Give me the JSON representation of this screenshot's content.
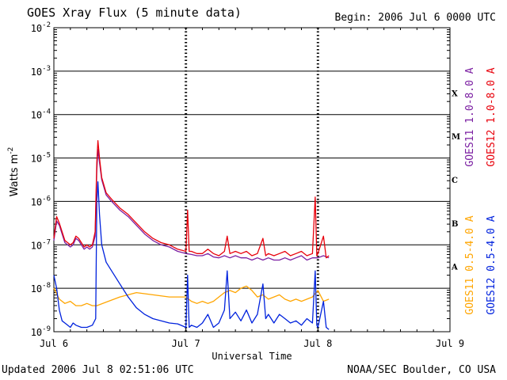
{
  "header": {
    "title": "GOES Xray Flux (5 minute data)",
    "begin": "Begin:  2006 Jul 6 0000 UTC"
  },
  "footer": {
    "updated": "Updated 2006 Jul  8 02:51:06 UTC",
    "agency": "NOAA/SEC Boulder, CO USA"
  },
  "chart_data": {
    "type": "line",
    "title": "GOES Xray Flux (5 minute data)",
    "xlabel": "Universal Time",
    "ylabel_main": "Watts m",
    "ylabel_sup": "-2",
    "y_scale": "log",
    "ylim": [
      1e-09,
      0.01
    ],
    "xlim": [
      0,
      72
    ],
    "x_unit": "hours since Jul 6 0000 UTC",
    "x_ticks": [
      {
        "hours": 0,
        "label": "Jul 6"
      },
      {
        "hours": 24,
        "label": "Jul 7"
      },
      {
        "hours": 48,
        "label": "Jul 8"
      },
      {
        "hours": 72,
        "label": "Jul 9"
      }
    ],
    "y_ticks": [
      {
        "exp": -2,
        "label_base": "10",
        "label_exp": "-2"
      },
      {
        "exp": -3,
        "label_base": "10",
        "label_exp": "-3"
      },
      {
        "exp": -4,
        "label_base": "10",
        "label_exp": "-4"
      },
      {
        "exp": -5,
        "label_base": "10",
        "label_exp": "-5"
      },
      {
        "exp": -6,
        "label_base": "10",
        "label_exp": "-6"
      },
      {
        "exp": -7,
        "label_base": "10",
        "label_exp": "-7"
      },
      {
        "exp": -8,
        "label_base": "10",
        "label_exp": "-8"
      },
      {
        "exp": -9,
        "label_base": "10",
        "label_exp": "-9"
      }
    ],
    "flare_classes": [
      {
        "label": "X",
        "exp": -3.5
      },
      {
        "label": "M",
        "exp": -4.5
      },
      {
        "label": "C",
        "exp": -5.5
      },
      {
        "label": "B",
        "exp": -6.5
      },
      {
        "label": "A",
        "exp": -7.5
      }
    ],
    "grid": true,
    "legend_placement": "right-vertical",
    "series": [
      {
        "name": "GOES11 1.0-8.0 A",
        "color": "#7b1fa2",
        "points": [
          [
            0,
            -6.9
          ],
          [
            0.5,
            -6.45
          ],
          [
            1,
            -6.55
          ],
          [
            1.5,
            -6.75
          ],
          [
            2,
            -6.95
          ],
          [
            2.5,
            -7.0
          ],
          [
            3,
            -7.05
          ],
          [
            3.5,
            -7.0
          ],
          [
            4,
            -6.85
          ],
          [
            4.5,
            -6.9
          ],
          [
            5,
            -7.0
          ],
          [
            5.5,
            -7.1
          ],
          [
            6,
            -7.05
          ],
          [
            6.5,
            -7.1
          ],
          [
            7,
            -7.05
          ],
          [
            7.5,
            -6.8
          ],
          [
            7.8,
            -5.3
          ],
          [
            8.0,
            -4.8
          ],
          [
            8.3,
            -5.1
          ],
          [
            8.7,
            -5.5
          ],
          [
            9.5,
            -5.85
          ],
          [
            10.5,
            -6.0
          ],
          [
            12,
            -6.2
          ],
          [
            13.5,
            -6.35
          ],
          [
            15,
            -6.55
          ],
          [
            16.5,
            -6.75
          ],
          [
            18,
            -6.9
          ],
          [
            19.5,
            -7.0
          ],
          [
            21,
            -7.05
          ],
          [
            22.5,
            -7.15
          ],
          [
            24,
            -7.2
          ],
          [
            25,
            -7.22
          ],
          [
            26,
            -7.25
          ],
          [
            27,
            -7.25
          ],
          [
            28,
            -7.2
          ],
          [
            29,
            -7.28
          ],
          [
            30,
            -7.3
          ],
          [
            31,
            -7.25
          ],
          [
            32,
            -7.3
          ],
          [
            33,
            -7.25
          ],
          [
            34,
            -7.3
          ],
          [
            35,
            -7.3
          ],
          [
            36,
            -7.35
          ],
          [
            37,
            -7.3
          ],
          [
            38,
            -7.35
          ],
          [
            39,
            -7.3
          ],
          [
            40,
            -7.35
          ],
          [
            41,
            -7.35
          ],
          [
            42,
            -7.3
          ],
          [
            43,
            -7.35
          ],
          [
            44,
            -7.3
          ],
          [
            45,
            -7.25
          ],
          [
            46,
            -7.35
          ],
          [
            47,
            -7.3
          ],
          [
            48,
            -7.3
          ],
          [
            49,
            -7.25
          ],
          [
            50,
            -7.3
          ]
        ]
      },
      {
        "name": "GOES12 1.0-8.0 A",
        "color": "#e8000b",
        "points": [
          [
            0,
            -6.85
          ],
          [
            0.5,
            -6.35
          ],
          [
            1,
            -6.5
          ],
          [
            1.5,
            -6.7
          ],
          [
            2,
            -6.9
          ],
          [
            2.5,
            -6.95
          ],
          [
            3,
            -7.0
          ],
          [
            3.5,
            -6.95
          ],
          [
            4,
            -6.8
          ],
          [
            4.5,
            -6.85
          ],
          [
            5,
            -6.95
          ],
          [
            5.5,
            -7.05
          ],
          [
            6,
            -7.0
          ],
          [
            6.5,
            -7.05
          ],
          [
            7,
            -7.0
          ],
          [
            7.5,
            -6.7
          ],
          [
            7.8,
            -5.1
          ],
          [
            8.0,
            -4.6
          ],
          [
            8.3,
            -5.0
          ],
          [
            8.7,
            -5.45
          ],
          [
            9.5,
            -5.8
          ],
          [
            10.5,
            -5.95
          ],
          [
            12,
            -6.15
          ],
          [
            13.5,
            -6.3
          ],
          [
            15,
            -6.5
          ],
          [
            16.5,
            -6.7
          ],
          [
            18,
            -6.85
          ],
          [
            19.5,
            -6.95
          ],
          [
            21,
            -7.0
          ],
          [
            22.5,
            -7.1
          ],
          [
            24,
            -7.15
          ],
          [
            24.3,
            -6.2
          ],
          [
            24.6,
            -7.15
          ],
          [
            25,
            -7.15
          ],
          [
            26,
            -7.2
          ],
          [
            27,
            -7.2
          ],
          [
            28,
            -7.1
          ],
          [
            29,
            -7.2
          ],
          [
            30,
            -7.25
          ],
          [
            31,
            -7.15
          ],
          [
            31.5,
            -6.8
          ],
          [
            32,
            -7.2
          ],
          [
            33,
            -7.15
          ],
          [
            34,
            -7.2
          ],
          [
            35,
            -7.15
          ],
          [
            36,
            -7.25
          ],
          [
            37,
            -7.2
          ],
          [
            38,
            -6.85
          ],
          [
            38.5,
            -7.25
          ],
          [
            39,
            -7.2
          ],
          [
            40,
            -7.25
          ],
          [
            41,
            -7.2
          ],
          [
            42,
            -7.15
          ],
          [
            43,
            -7.25
          ],
          [
            44,
            -7.2
          ],
          [
            45,
            -7.15
          ],
          [
            46,
            -7.25
          ],
          [
            47,
            -7.2
          ],
          [
            47.5,
            -5.9
          ],
          [
            47.8,
            -7.25
          ],
          [
            48,
            -7.2
          ],
          [
            49,
            -6.8
          ],
          [
            49.5,
            -7.3
          ],
          [
            50,
            -7.25
          ]
        ]
      },
      {
        "name": "GOES11 0.5-4.0 A",
        "color": "#ffa500",
        "points": [
          [
            0,
            -8.0
          ],
          [
            1,
            -8.25
          ],
          [
            2,
            -8.35
          ],
          [
            3,
            -8.3
          ],
          [
            4,
            -8.4
          ],
          [
            5,
            -8.4
          ],
          [
            6,
            -8.35
          ],
          [
            7,
            -8.4
          ],
          [
            7.5,
            -8.4
          ],
          [
            7.8,
            -8.4
          ],
          [
            12,
            -8.2
          ],
          [
            15,
            -8.1
          ],
          [
            18,
            -8.15
          ],
          [
            21,
            -8.2
          ],
          [
            24,
            -8.2
          ],
          [
            25,
            -8.3
          ],
          [
            26,
            -8.35
          ],
          [
            27,
            -8.3
          ],
          [
            28,
            -8.35
          ],
          [
            29,
            -8.3
          ],
          [
            30,
            -8.2
          ],
          [
            31,
            -8.1
          ],
          [
            32,
            -8.05
          ],
          [
            33,
            -8.1
          ],
          [
            34,
            -8.0
          ],
          [
            35,
            -7.95
          ],
          [
            36,
            -8.05
          ],
          [
            37,
            -8.2
          ],
          [
            38,
            -8.15
          ],
          [
            39,
            -8.25
          ],
          [
            40,
            -8.2
          ],
          [
            41,
            -8.15
          ],
          [
            42,
            -8.25
          ],
          [
            43,
            -8.3
          ],
          [
            44,
            -8.25
          ],
          [
            45,
            -8.3
          ],
          [
            46,
            -8.25
          ],
          [
            47,
            -8.2
          ],
          [
            48,
            -8.05
          ],
          [
            49,
            -8.3
          ],
          [
            50,
            -8.25
          ]
        ]
      },
      {
        "name": "GOES12 0.5-4.0 A",
        "color": "#0022dd",
        "points": [
          [
            0,
            -7.7
          ],
          [
            0.5,
            -8.0
          ],
          [
            1,
            -8.5
          ],
          [
            1.5,
            -8.75
          ],
          [
            2,
            -8.8
          ],
          [
            2.5,
            -8.85
          ],
          [
            3,
            -8.9
          ],
          [
            3.5,
            -8.8
          ],
          [
            4,
            -8.85
          ],
          [
            5,
            -8.9
          ],
          [
            6,
            -8.9
          ],
          [
            7,
            -8.85
          ],
          [
            7.6,
            -8.7
          ],
          [
            7.8,
            -6.0
          ],
          [
            8.0,
            -5.55
          ],
          [
            8.3,
            -6.3
          ],
          [
            8.7,
            -7.0
          ],
          [
            9.5,
            -7.4
          ],
          [
            10.5,
            -7.6
          ],
          [
            12,
            -7.9
          ],
          [
            13.5,
            -8.2
          ],
          [
            15,
            -8.45
          ],
          [
            16.5,
            -8.6
          ],
          [
            18,
            -8.7
          ],
          [
            19.5,
            -8.75
          ],
          [
            21,
            -8.8
          ],
          [
            22.5,
            -8.82
          ],
          [
            24,
            -8.9
          ],
          [
            24.3,
            -7.7
          ],
          [
            24.6,
            -8.9
          ],
          [
            25,
            -8.85
          ],
          [
            26,
            -8.9
          ],
          [
            27,
            -8.8
          ],
          [
            28,
            -8.6
          ],
          [
            29,
            -8.9
          ],
          [
            30,
            -8.8
          ],
          [
            31,
            -8.5
          ],
          [
            31.5,
            -7.6
          ],
          [
            32,
            -8.7
          ],
          [
            33,
            -8.55
          ],
          [
            34,
            -8.75
          ],
          [
            35,
            -8.5
          ],
          [
            36,
            -8.8
          ],
          [
            37,
            -8.6
          ],
          [
            38,
            -7.9
          ],
          [
            38.5,
            -8.7
          ],
          [
            39,
            -8.6
          ],
          [
            40,
            -8.8
          ],
          [
            41,
            -8.6
          ],
          [
            42,
            -8.7
          ],
          [
            43,
            -8.8
          ],
          [
            44,
            -8.75
          ],
          [
            45,
            -8.85
          ],
          [
            46,
            -8.7
          ],
          [
            47,
            -8.8
          ],
          [
            47.5,
            -7.6
          ],
          [
            47.8,
            -8.85
          ],
          [
            48,
            -8.9
          ],
          [
            49,
            -8.3
          ],
          [
            49.5,
            -8.9
          ],
          [
            50,
            -8.95
          ]
        ]
      }
    ]
  }
}
